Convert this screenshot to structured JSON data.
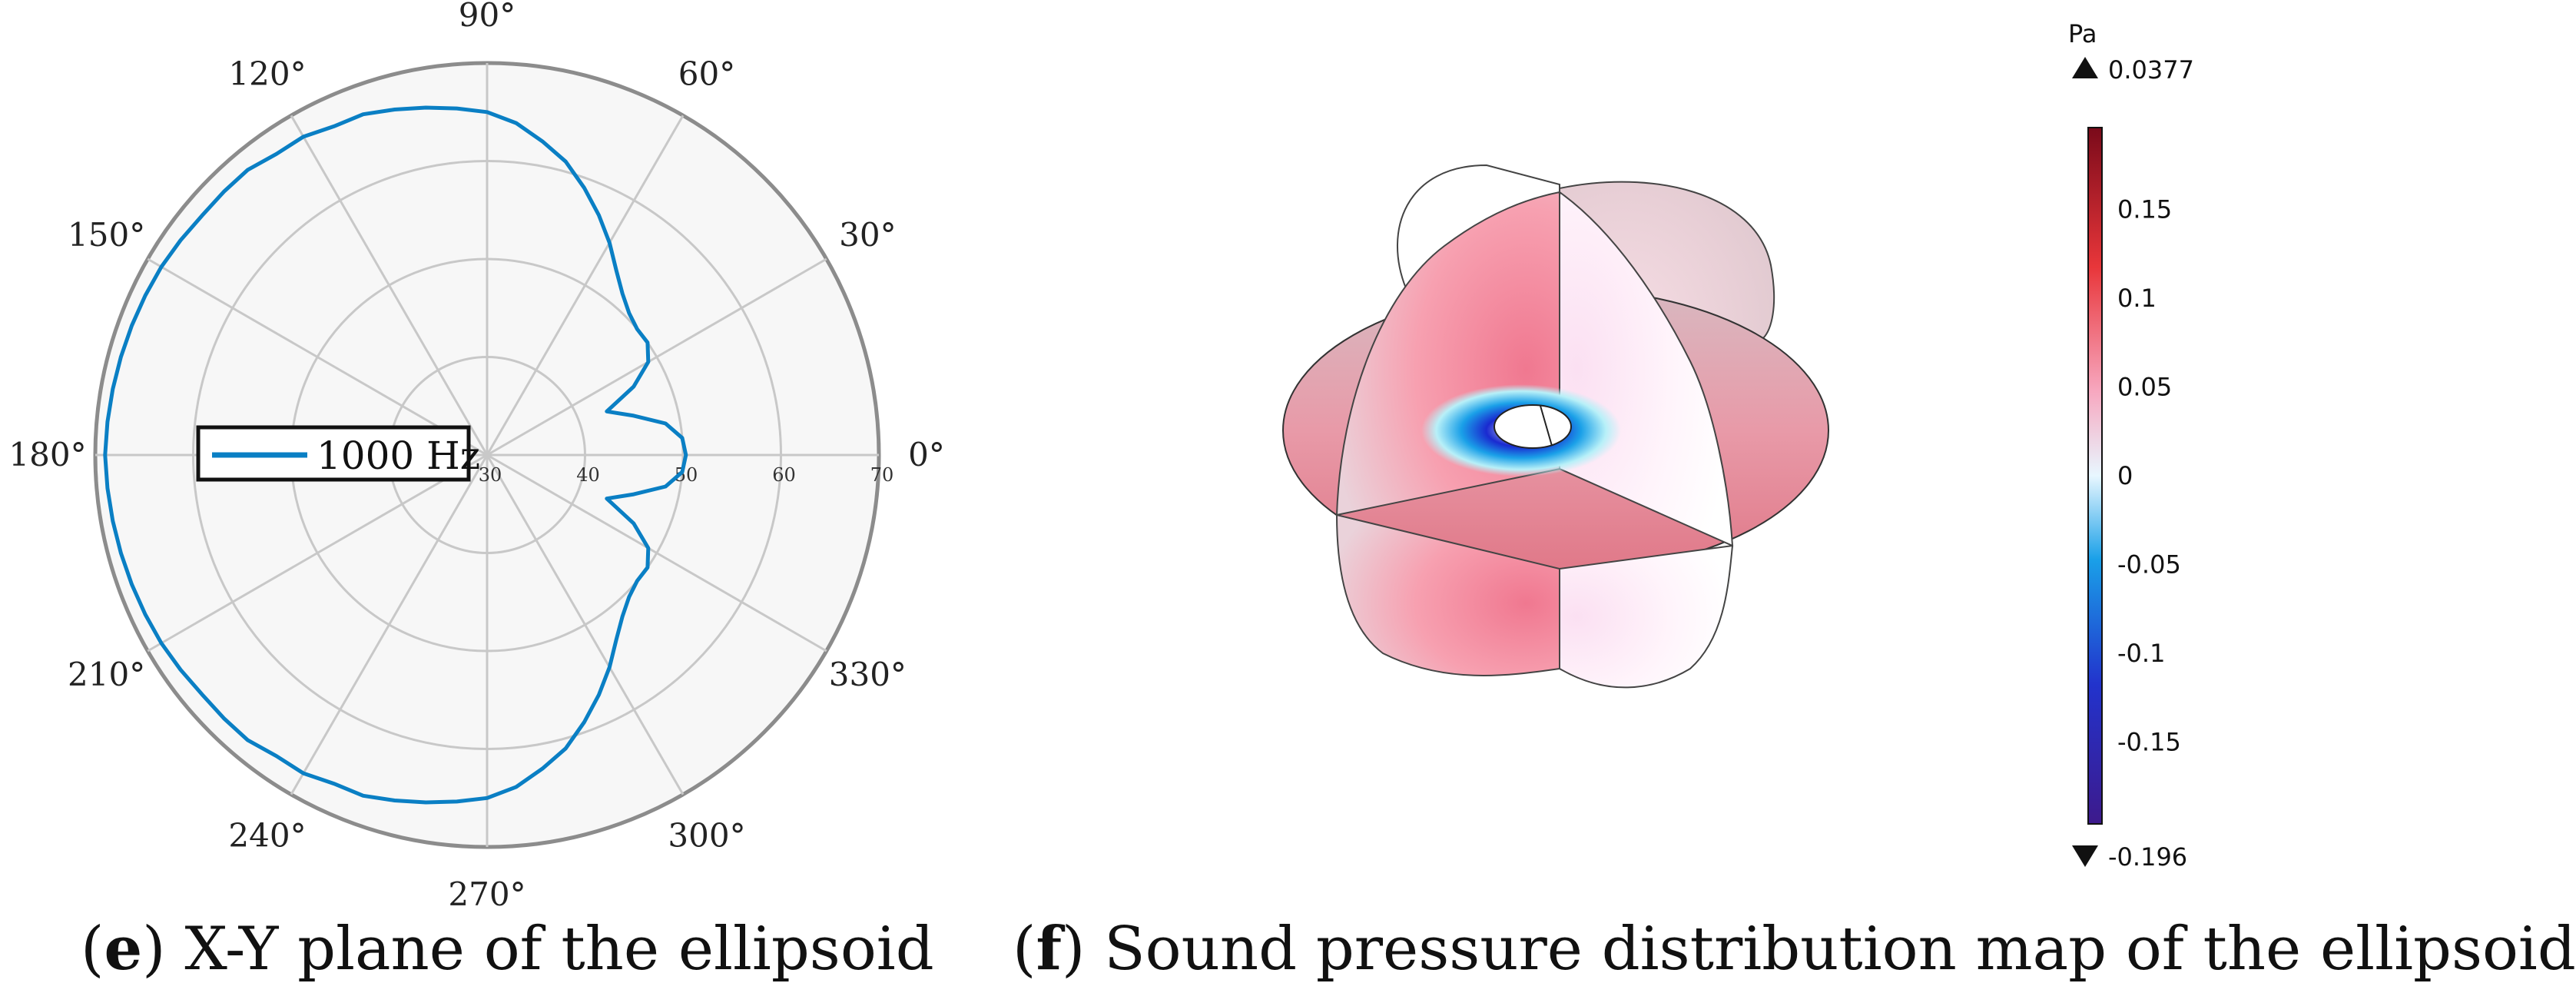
{
  "captions": {
    "e": {
      "letter": "e",
      "text": "X-Y plane of the ellipsoid"
    },
    "f": {
      "letter": "f",
      "text": "Sound pressure distribution map of the ellipsoid"
    }
  },
  "chart_data": [
    {
      "type": "polar-line",
      "title": "",
      "legend": {
        "entries": [
          "1000 Hz"
        ],
        "placement": "left"
      },
      "angle_ticks": [
        "0°",
        "30°",
        "60°",
        "90°",
        "120°",
        "150°",
        "180°",
        "210°",
        "240°",
        "270°",
        "300°",
        "330°"
      ],
      "radial_ticks": [
        30,
        40,
        50,
        60,
        70
      ],
      "rlim": [
        30,
        70
      ],
      "grid": true,
      "colors": {
        "series": "#0a7fc4",
        "grid": "#c8c8c8",
        "face": "#f7f7f7",
        "edge": "#8c8c8c"
      },
      "series": [
        {
          "name": "1000 Hz",
          "theta_deg": [
            0,
            5,
            10,
            15,
            20,
            25,
            30,
            35,
            40,
            45,
            50,
            55,
            60,
            65,
            70,
            75,
            80,
            85,
            90,
            95,
            100,
            105,
            110,
            115,
            120,
            125,
            130,
            135,
            140,
            145,
            150,
            155,
            160,
            165,
            170,
            175,
            180
          ],
          "r": [
            50.3,
            50.0,
            48.5,
            45.5,
            43.0,
            46.5,
            49.0,
            50.0,
            50.0,
            50.5,
            51.5,
            53.0,
            55.0,
            57.0,
            59.0,
            61.0,
            62.5,
            64.0,
            65.0,
            65.5,
            66.0,
            66.5,
            67.0,
            67.0,
            67.5,
            67.5,
            68.0,
            68.0,
            68.0,
            68.2,
            68.4,
            68.5,
            68.6,
            68.7,
            68.8,
            68.9,
            69.0
          ]
        }
      ]
    },
    {
      "type": "heatmap",
      "title": "",
      "colorbar": {
        "unit": "Pa",
        "max_marker": "0.0377",
        "min_marker": "-0.196",
        "ticks": [
          "0.15",
          "0.1",
          "0.05",
          "0",
          "-0.05",
          "-0.1",
          "-0.15"
        ],
        "tick_values": [
          0.15,
          0.1,
          0.05,
          0,
          -0.05,
          -0.1,
          -0.15
        ],
        "range": [
          -0.196,
          0.196
        ],
        "colors": [
          "#3d1a8c",
          "#2233cc",
          "#1aa0e8",
          "#e8f7ff",
          "#f7a8c0",
          "#e8363a",
          "#7a0a1a"
        ]
      }
    }
  ]
}
